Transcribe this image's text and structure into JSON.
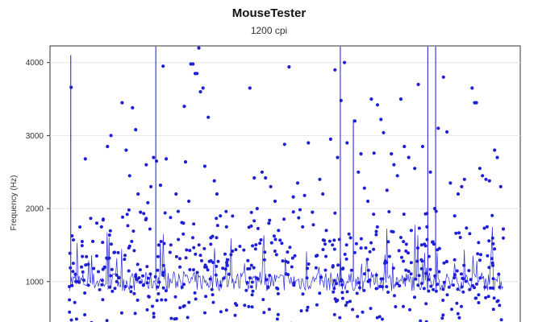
{
  "chart_data": {
    "type": "scatter",
    "title": "MouseTester",
    "subtitle": "1200 cpi",
    "xlabel": "",
    "ylabel": "Frequency (Hz)",
    "yticks": [
      "1000",
      "2000",
      "3000",
      "4000"
    ],
    "ylim": [
      0,
      4220
    ],
    "grid": true,
    "legend": "none",
    "series": [
      {
        "kind": "points",
        "color": "#1f1fd6",
        "values": [
          3660,
          1100,
          1000,
          1200,
          2680,
          950,
          1550,
          1800,
          1750,
          1200,
          2850,
          3000,
          1400,
          1050,
          3450,
          2800,
          2450,
          3380,
          3080,
          2200,
          1950,
          2600,
          2080,
          2300,
          2700,
          2650,
          1500,
          2320,
          3950,
          2680,
          1400,
          2200,
          1200,
          1800,
          3400,
          2640,
          2100,
          3980,
          3980,
          3850,
          3850,
          4200,
          3600,
          3650,
          2580,
          3250,
          1600,
          1620,
          2380,
          2200,
          1900,
          1750,
          1100,
          3650,
          2420,
          2000,
          2500,
          2420,
          2300,
          2100,
          1700,
          2880,
          3940,
          2160,
          2350,
          1750,
          2180,
          2900,
          1950,
          1350,
          2400,
          2200,
          1700,
          2950,
          3900,
          2700,
          3480,
          4000,
          2900,
          1600,
          3200,
          2500,
          2750,
          2280,
          2100,
          3500,
          2760,
          3420,
          3220,
          3040,
          2250,
          2750,
          2600,
          2450,
          3500,
          2850,
          2700,
          1700,
          2550,
          3700,
          2850,
          1750,
          2500,
          2000,
          3100,
          3800,
          3050,
          2350,
          1900,
          2200,
          2300,
          2400,
          3650,
          3450,
          3450,
          2550,
          2450,
          2400,
          2380,
          2800,
          2700,
          2300,
          1720
        ],
        "x": [
          1.0,
          3.5,
          5.0,
          7.0,
          9.2,
          11.0,
          13.5,
          15.8,
          18.5,
          20.3,
          22.0,
          24.0,
          26.0,
          28.5,
          30.4,
          32.7,
          34.7,
          36.4,
          38.2,
          39.6,
          41.0,
          44.3,
          45.2,
          47.0,
          48.5,
          50.2,
          51.5,
          52.5,
          54.0,
          55.8,
          58.0,
          61.5,
          63.7,
          65.7,
          66.2,
          66.9,
          68.8,
          70.0,
          71.2,
          72.5,
          73.5,
          74.6,
          75.5,
          77.0,
          78.0,
          80.0,
          81.5,
          82.5,
          83.5,
          85.0,
          87.0,
          90.5,
          92.0,
          104.0,
          106.5,
          108.2,
          111.0,
          113.0,
          116.0,
          118.5,
          120.5,
          124.0,
          126.6,
          129.0,
          131.5,
          134.4,
          135.5,
          137.7,
          140.0,
          142.2,
          144.3,
          146.0,
          148.0,
          150.5,
          153.0,
          154.5,
          156.5,
          158.5,
          160.0,
          162.0,
          164.5,
          166.5,
          168.0,
          170.0,
          172.0,
          174.0,
          175.5,
          177.5,
          179.5,
          181.0,
          183.0,
          185.5,
          187.0,
          189.0,
          191.0,
          193.0,
          195.5,
          197.0,
          199.0,
          201.0,
          203.5,
          206.0,
          208.0,
          210.5,
          212.5,
          215.5,
          217.5,
          219.5,
          222.0,
          224.0,
          226.0,
          227.6,
          232.0,
          233.5,
          234.5,
          236.5,
          238.0,
          240.0,
          242.0,
          245.0,
          246.5,
          248.5,
          250.0
        ]
      },
      {
        "kind": "spikes",
        "color": "#2a2ae0",
        "x": [
          0.8,
          49.8,
          156.1,
          163.6,
          206.5,
          211.0
        ],
        "values": [
          4100,
          4220,
          4220,
          3220,
          4220,
          4220
        ]
      }
    ]
  }
}
